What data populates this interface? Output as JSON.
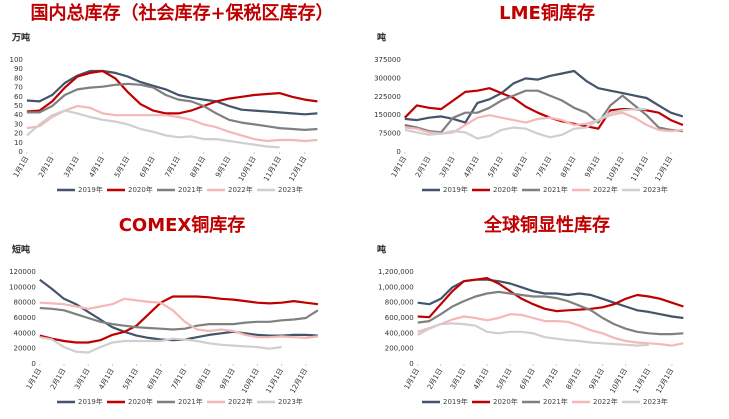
{
  "chart_data": [
    {
      "type": "line",
      "title": "国内总库存（社会库存+保税区库存）",
      "y_label": "万吨",
      "xlim": [
        1,
        13
      ],
      "xticks": [
        {
          "value": 1,
          "label": "1月1日"
        },
        {
          "value": 2,
          "label": "2月1日"
        },
        {
          "value": 3,
          "label": "3月1日"
        },
        {
          "value": 4,
          "label": "4月1日"
        },
        {
          "value": 5,
          "label": "5月1日"
        },
        {
          "value": 6,
          "label": "6月1日"
        },
        {
          "value": 7,
          "label": "7月1日"
        },
        {
          "value": 8,
          "label": "8月1日"
        },
        {
          "value": 9,
          "label": "9月1日"
        },
        {
          "value": 10,
          "label": "10月1日"
        },
        {
          "value": 11,
          "label": "11月1日"
        },
        {
          "value": 12,
          "label": "12月1日"
        }
      ],
      "ylim": [
        0,
        100
      ],
      "yticks": [
        0,
        10,
        20,
        30,
        40,
        50,
        60,
        70,
        80,
        90,
        100
      ],
      "grid": false,
      "x": [
        1,
        1.5,
        2,
        2.5,
        3,
        3.5,
        4,
        4.5,
        5,
        5.5,
        6,
        6.5,
        7,
        7.5,
        8,
        8.5,
        9,
        9.5,
        10,
        10.5,
        11,
        11.5,
        12,
        12.5
      ],
      "series": [
        {
          "name": "2019年",
          "color": "#44546a",
          "values": [
            56,
            55,
            62,
            75,
            83,
            88,
            88,
            86,
            82,
            76,
            72,
            68,
            62,
            59,
            57,
            55,
            50,
            46,
            45,
            44,
            43,
            42,
            41,
            42
          ]
        },
        {
          "name": "2020年",
          "color": "#c00000",
          "values": [
            44,
            45,
            55,
            70,
            82,
            86,
            88,
            80,
            65,
            52,
            45,
            42,
            42,
            45,
            50,
            55,
            58,
            60,
            62,
            63,
            64,
            60,
            57,
            55
          ]
        },
        {
          "name": "2021年",
          "color": "#808080",
          "values": [
            43,
            43,
            50,
            62,
            68,
            70,
            71,
            73,
            74,
            73,
            70,
            62,
            57,
            55,
            50,
            42,
            35,
            32,
            30,
            28,
            26,
            25,
            24,
            25
          ]
        },
        {
          "name": "2022年",
          "color": "#f4b8b8",
          "values": [
            26,
            28,
            38,
            45,
            50,
            48,
            42,
            40,
            40,
            40,
            40,
            40,
            38,
            35,
            30,
            27,
            22,
            18,
            14,
            12,
            13,
            13,
            12,
            13
          ]
        },
        {
          "name": "2023年",
          "color": "#d0cece",
          "values": [
            18,
            30,
            40,
            45,
            42,
            38,
            35,
            33,
            30,
            25,
            22,
            18,
            16,
            17,
            14,
            14,
            12,
            10,
            8,
            6,
            5,
            null,
            null,
            null
          ]
        }
      ]
    },
    {
      "type": "line",
      "title": "LME铜库存",
      "y_label": "吨",
      "xlim": [
        1,
        13
      ],
      "xticks": [
        {
          "value": 1,
          "label": "1月1日"
        },
        {
          "value": 2,
          "label": "2月1日"
        },
        {
          "value": 3,
          "label": "3月1日"
        },
        {
          "value": 4,
          "label": "4月1日"
        },
        {
          "value": 5,
          "label": "5月1日"
        },
        {
          "value": 6,
          "label": "6月1日"
        },
        {
          "value": 7,
          "label": "7月1日"
        },
        {
          "value": 8,
          "label": "8月1日"
        },
        {
          "value": 9,
          "label": "9月1日"
        },
        {
          "value": 10,
          "label": "10月1日"
        },
        {
          "value": 11,
          "label": "11月1日"
        },
        {
          "value": 12,
          "label": "12月1日"
        }
      ],
      "ylim": [
        0,
        375000
      ],
      "yticks": [
        0,
        75000,
        150000,
        225000,
        300000,
        375000
      ],
      "grid": false,
      "x": [
        1,
        1.5,
        2,
        2.5,
        3,
        3.5,
        4,
        4.5,
        5,
        5.5,
        6,
        6.5,
        7,
        7.5,
        8,
        8.5,
        9,
        9.5,
        10,
        10.5,
        11,
        11.5,
        12,
        12.5
      ],
      "series": [
        {
          "name": "2019年",
          "color": "#44546a",
          "values": [
            135000,
            130000,
            140000,
            145000,
            135000,
            120000,
            200000,
            215000,
            240000,
            280000,
            300000,
            295000,
            310000,
            320000,
            330000,
            290000,
            260000,
            250000,
            240000,
            230000,
            220000,
            190000,
            160000,
            145000
          ]
        },
        {
          "name": "2020年",
          "color": "#c00000",
          "values": [
            140000,
            190000,
            180000,
            175000,
            210000,
            245000,
            250000,
            260000,
            240000,
            220000,
            185000,
            160000,
            140000,
            125000,
            115000,
            105000,
            95000,
            170000,
            175000,
            175000,
            170000,
            160000,
            130000,
            110000
          ]
        },
        {
          "name": "2021年",
          "color": "#808080",
          "values": [
            110000,
            100000,
            85000,
            80000,
            140000,
            160000,
            160000,
            180000,
            210000,
            230000,
            250000,
            250000,
            230000,
            210000,
            180000,
            160000,
            120000,
            190000,
            230000,
            190000,
            150000,
            100000,
            90000,
            85000
          ]
        },
        {
          "name": "2022年",
          "color": "#f4b8b8",
          "values": [
            100000,
            95000,
            80000,
            75000,
            80000,
            110000,
            140000,
            150000,
            140000,
            130000,
            120000,
            135000,
            140000,
            130000,
            110000,
            115000,
            130000,
            150000,
            160000,
            140000,
            110000,
            90000,
            85000,
            90000
          ]
        },
        {
          "name": "2023年",
          "color": "#d0cece",
          "values": [
            90000,
            80000,
            70000,
            75000,
            85000,
            80000,
            55000,
            65000,
            90000,
            100000,
            95000,
            75000,
            60000,
            70000,
            95000,
            100000,
            130000,
            160000,
            170000,
            175000,
            175000,
            null,
            null,
            null
          ]
        }
      ]
    },
    {
      "type": "line",
      "title": "COMEX铜库存",
      "y_label": "短吨",
      "xlim": [
        1,
        13
      ],
      "xticks": [
        {
          "value": 1,
          "label": "1月1日"
        },
        {
          "value": 2,
          "label": "2月1日"
        },
        {
          "value": 3,
          "label": "3月1日"
        },
        {
          "value": 4,
          "label": "4月1日"
        },
        {
          "value": 5,
          "label": "5月1日"
        },
        {
          "value": 6,
          "label": "6月1日"
        },
        {
          "value": 7,
          "label": "7月1日"
        },
        {
          "value": 8,
          "label": "8月1日"
        },
        {
          "value": 9,
          "label": "9月1日"
        },
        {
          "value": 10,
          "label": "10月1日"
        },
        {
          "value": 11,
          "label": "11月1日"
        },
        {
          "value": 12,
          "label": "12月1日"
        }
      ],
      "ylim": [
        0,
        120000
      ],
      "yticks": [
        0,
        20000,
        40000,
        60000,
        80000,
        100000,
        120000
      ],
      "grid": false,
      "x": [
        1,
        1.5,
        2,
        2.5,
        3,
        3.5,
        4,
        4.5,
        5,
        5.5,
        6,
        6.5,
        7,
        7.5,
        8,
        8.5,
        9,
        9.5,
        10,
        10.5,
        11,
        11.5,
        12,
        12.5
      ],
      "series": [
        {
          "name": "2019年",
          "color": "#44546a",
          "values": [
            110000,
            98000,
            85000,
            78000,
            68000,
            58000,
            48000,
            42000,
            37000,
            34000,
            32000,
            31000,
            32000,
            35000,
            38000,
            40000,
            42000,
            40000,
            38000,
            37000,
            37000,
            38000,
            38000,
            37000
          ]
        },
        {
          "name": "2020年",
          "color": "#c00000",
          "values": [
            37000,
            33000,
            30000,
            28000,
            28000,
            31000,
            38000,
            42000,
            50000,
            65000,
            80000,
            88000,
            88000,
            88000,
            87000,
            85000,
            84000,
            82000,
            80000,
            79000,
            80000,
            82000,
            80000,
            78000
          ]
        },
        {
          "name": "2021年",
          "color": "#808080",
          "values": [
            73000,
            72000,
            70000,
            65000,
            60000,
            55000,
            52000,
            50000,
            48000,
            47000,
            46000,
            45000,
            46000,
            50000,
            52000,
            52000,
            52000,
            54000,
            55000,
            55000,
            57000,
            58000,
            60000,
            70000
          ]
        },
        {
          "name": "2022年",
          "color": "#f4b8b8",
          "values": [
            80000,
            79000,
            78000,
            75000,
            72000,
            75000,
            78000,
            85000,
            83000,
            81000,
            80000,
            70000,
            55000,
            45000,
            43000,
            45000,
            43000,
            38000,
            35000,
            35000,
            36000,
            35000,
            34000,
            36000
          ]
        },
        {
          "name": "2023年",
          "color": "#d0cece",
          "values": [
            35000,
            32000,
            22000,
            16000,
            15000,
            22000,
            28000,
            30000,
            30000,
            30000,
            30000,
            33000,
            32000,
            30000,
            27000,
            25000,
            24000,
            23000,
            22000,
            20000,
            22000,
            null,
            null,
            null
          ]
        }
      ]
    },
    {
      "type": "line",
      "title": "全球铜显性库存",
      "y_label": "吨",
      "xlim": [
        1,
        13
      ],
      "xticks": [
        {
          "value": 1,
          "label": "1月1日"
        },
        {
          "value": 2,
          "label": "2月1日"
        },
        {
          "value": 3,
          "label": "3月1日"
        },
        {
          "value": 4,
          "label": "4月1日"
        },
        {
          "value": 5,
          "label": "5月1日"
        },
        {
          "value": 6,
          "label": "6月1日"
        },
        {
          "value": 7,
          "label": "7月1日"
        },
        {
          "value": 8,
          "label": "8月1日"
        },
        {
          "value": 9,
          "label": "9月1日"
        },
        {
          "value": 10,
          "label": "10月1日"
        },
        {
          "value": 11,
          "label": "11月1日"
        },
        {
          "value": 12,
          "label": "12月1日"
        }
      ],
      "ylim": [
        0,
        1200000
      ],
      "yticks": [
        0,
        {
          "value": 200000,
          "label": "200,000"
        },
        {
          "value": 400000,
          "label": "400,000"
        },
        {
          "value": 600000,
          "label": "600,000"
        },
        {
          "value": 800000,
          "label": "800,000"
        },
        {
          "value": 1000000,
          "label": "1,000,000"
        },
        {
          "value": 1200000,
          "label": "1,200,000"
        }
      ],
      "grid": false,
      "x": [
        1,
        1.5,
        2,
        2.5,
        3,
        3.5,
        4,
        4.5,
        5,
        5.5,
        6,
        6.5,
        7,
        7.5,
        8,
        8.5,
        9,
        9.5,
        10,
        10.5,
        11,
        11.5,
        12,
        12.5
      ],
      "series": [
        {
          "name": "2019年",
          "color": "#44546a",
          "values": [
            800000,
            780000,
            850000,
            1000000,
            1080000,
            1100000,
            1100000,
            1080000,
            1050000,
            1000000,
            950000,
            920000,
            920000,
            900000,
            920000,
            900000,
            850000,
            800000,
            750000,
            700000,
            680000,
            650000,
            620000,
            600000
          ]
        },
        {
          "name": "2020年",
          "color": "#c00000",
          "values": [
            620000,
            610000,
            780000,
            950000,
            1080000,
            1100000,
            1120000,
            1050000,
            950000,
            850000,
            780000,
            720000,
            690000,
            700000,
            710000,
            720000,
            740000,
            780000,
            850000,
            900000,
            880000,
            850000,
            800000,
            750000
          ]
        },
        {
          "name": "2021年",
          "color": "#808080",
          "values": [
            540000,
            560000,
            650000,
            750000,
            820000,
            880000,
            920000,
            940000,
            920000,
            900000,
            880000,
            880000,
            860000,
            820000,
            760000,
            700000,
            600000,
            520000,
            460000,
            420000,
            400000,
            390000,
            390000,
            400000
          ]
        },
        {
          "name": "2022年",
          "color": "#f4b8b8",
          "values": [
            420000,
            470000,
            520000,
            580000,
            620000,
            600000,
            570000,
            600000,
            650000,
            640000,
            600000,
            560000,
            560000,
            550000,
            500000,
            440000,
            400000,
            340000,
            300000,
            280000,
            270000,
            260000,
            240000,
            270000
          ]
        },
        {
          "name": "2023年",
          "color": "#d0cece",
          "values": [
            380000,
            460000,
            520000,
            530000,
            520000,
            500000,
            420000,
            400000,
            420000,
            420000,
            400000,
            350000,
            330000,
            310000,
            300000,
            280000,
            270000,
            260000,
            250000,
            240000,
            250000,
            null,
            null,
            null
          ]
        }
      ]
    }
  ]
}
